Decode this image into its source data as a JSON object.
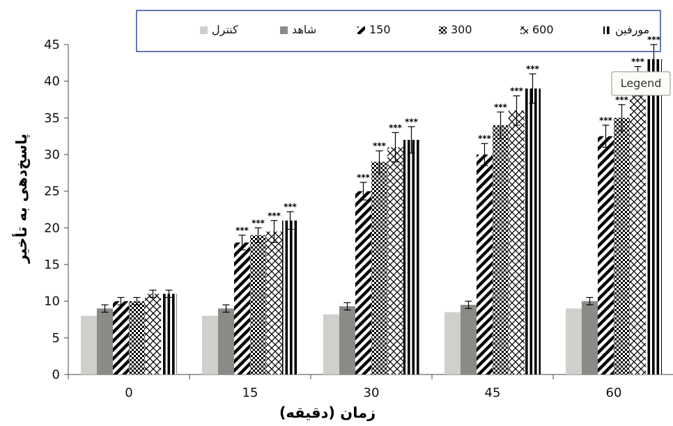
{
  "chart_data": {
    "type": "bar",
    "xlabel": "زمان (دقیقه)",
    "ylabel": "پاسخ‌دهی به تأخیر",
    "ylim": [
      0,
      45
    ],
    "yticks": [
      "0",
      "5",
      "10",
      "15",
      "20",
      "25",
      "30",
      "35",
      "40",
      "45"
    ],
    "categories": [
      "0",
      "15",
      "30",
      "45",
      "60"
    ],
    "legend_position": "top",
    "series": [
      {
        "name": "کنترل",
        "pattern": "solid-light",
        "color": "#cfcfcc",
        "values": [
          8,
          8,
          8.2,
          8.5,
          9
        ],
        "errors": [
          0,
          0,
          0,
          0,
          0
        ],
        "significance": [
          "",
          "",
          "",
          "",
          ""
        ]
      },
      {
        "name": "شاهد",
        "pattern": "solid-dark",
        "color": "#8a8a87",
        "values": [
          9,
          9,
          9.3,
          9.5,
          10
        ],
        "errors": [
          0.5,
          0.5,
          0.5,
          0.5,
          0.5
        ],
        "significance": [
          "",
          "",
          "",
          "",
          ""
        ]
      },
      {
        "name": "150",
        "pattern": "diagonal",
        "color": "#000000",
        "values": [
          10,
          18,
          25,
          30,
          32.5
        ],
        "errors": [
          0.5,
          1,
          1.2,
          1.5,
          1.5
        ],
        "significance": [
          "",
          "***",
          "***",
          "***",
          "***"
        ]
      },
      {
        "name": "300",
        "pattern": "crosshatch",
        "color": "#000000",
        "values": [
          10,
          19,
          29,
          34,
          35
        ],
        "errors": [
          0.5,
          1,
          1.5,
          1.8,
          1.8
        ],
        "significance": [
          "",
          "***",
          "***",
          "***",
          "***"
        ]
      },
      {
        "name": "600",
        "pattern": "diamond",
        "color": "#000000",
        "values": [
          11,
          19.5,
          31,
          36,
          40
        ],
        "errors": [
          0.5,
          1.5,
          2,
          2,
          2
        ],
        "significance": [
          "",
          "***",
          "***",
          "***",
          "***"
        ]
      },
      {
        "name": "مورفین",
        "pattern": "vertical",
        "color": "#000000",
        "values": [
          11,
          21,
          32,
          39,
          43
        ],
        "errors": [
          0.5,
          1.2,
          1.8,
          2,
          2
        ],
        "significance": [
          "",
          "***",
          "***",
          "***",
          "***"
        ]
      }
    ],
    "tooltip": "Legend"
  }
}
